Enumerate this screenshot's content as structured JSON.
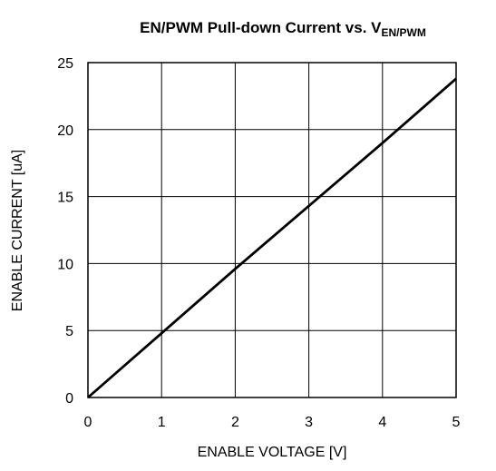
{
  "chart_data": {
    "type": "line",
    "title": "EN/PWM Pull-down Current vs. V",
    "title_subscript": "EN/PWM",
    "x_label": "ENABLE VOLTAGE [V]",
    "y_label": "ENABLE CURRENT [uA]",
    "x": [
      0,
      1,
      2,
      3,
      4,
      5
    ],
    "values": [
      0,
      4.8,
      9.6,
      14.3,
      19,
      23.8
    ],
    "color": "#000000",
    "xlim": [
      0,
      5
    ],
    "xticks": [
      0,
      1,
      2,
      3,
      4,
      5
    ],
    "ylim": [
      0,
      25
    ],
    "yticks": [
      0,
      5,
      10,
      15,
      20,
      25
    ],
    "grid": true
  }
}
